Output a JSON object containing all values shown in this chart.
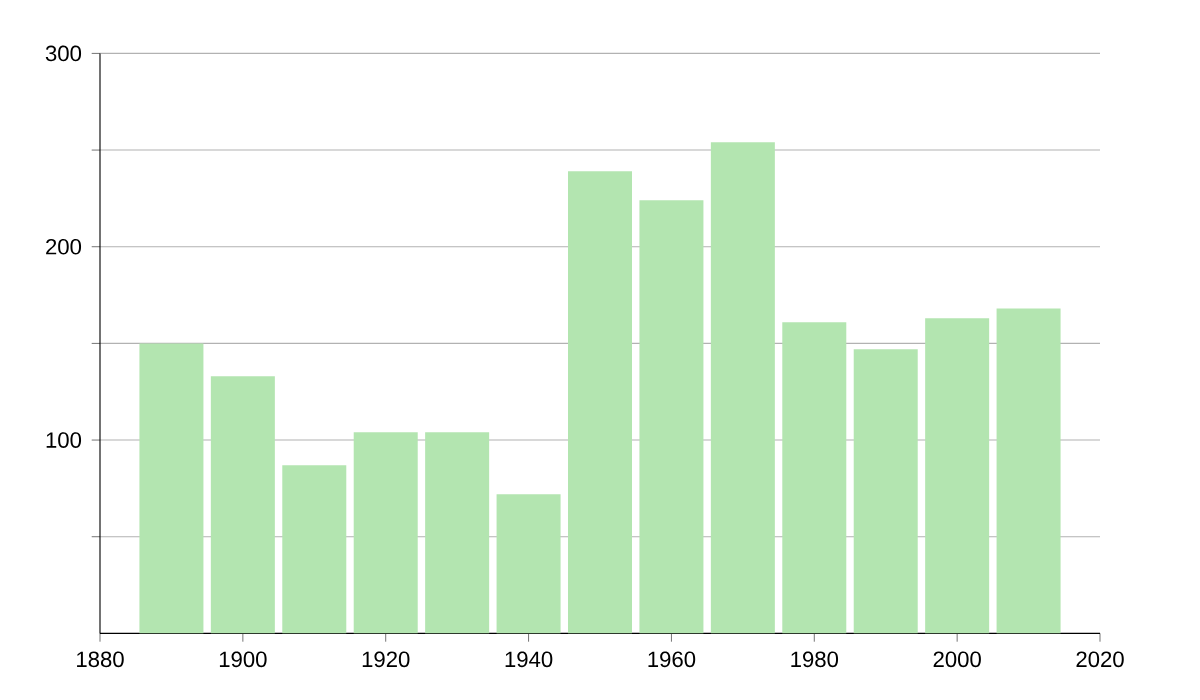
{
  "chart_data": {
    "type": "bar",
    "x": [
      1890,
      1900,
      1910,
      1920,
      1930,
      1940,
      1950,
      1960,
      1970,
      1980,
      1990,
      2000,
      2010
    ],
    "values": [
      150,
      133,
      87,
      104,
      104,
      72,
      239,
      224,
      254,
      161,
      147,
      163,
      168
    ],
    "color": "#b3e5b0",
    "xlim": [
      1880,
      2020
    ],
    "xticks": [
      1880,
      1900,
      1920,
      1940,
      1960,
      1980,
      2000,
      2020
    ],
    "ylim": [
      0,
      300
    ],
    "yticks": [
      {
        "value": 50,
        "label": null
      },
      100,
      {
        "value": 150,
        "label": null
      },
      200,
      {
        "value": 250,
        "label": null
      },
      300
    ],
    "grid": "y"
  }
}
